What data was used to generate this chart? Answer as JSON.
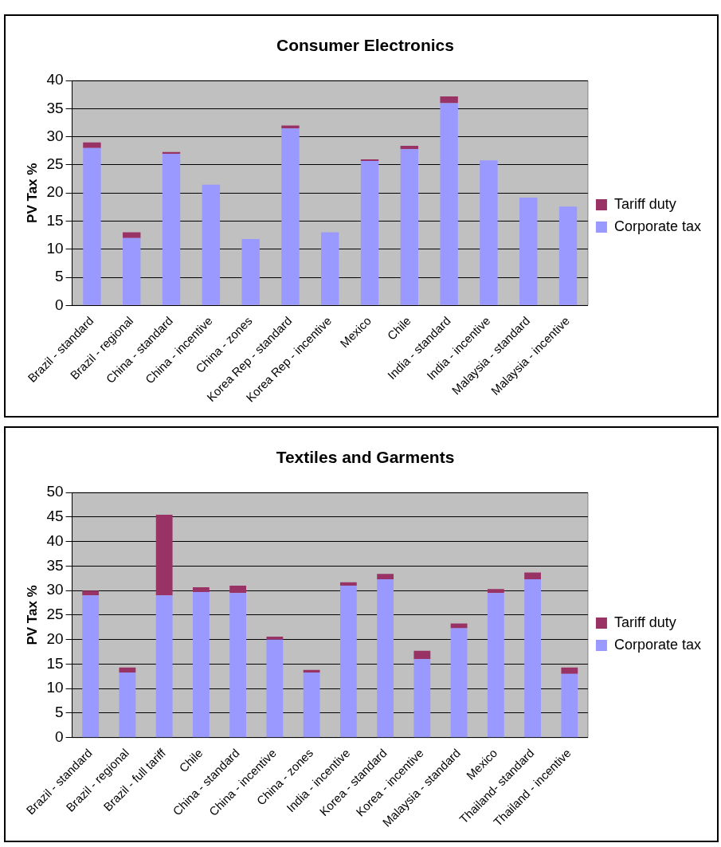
{
  "chart_data": [
    {
      "type": "bar",
      "title": "Consumer Electronics",
      "ylabel": "PV Tax %",
      "stacked": true,
      "legend": "right",
      "grid": "y",
      "categories": [
        "Brazil - standard",
        "Brazil - regional",
        "China - standard",
        "China - incentive",
        "China - zones",
        "Korea Rep - standard",
        "Korea Rep - incentive",
        "Mexico",
        "Chile",
        "India - standard",
        "India - incentive",
        "Malaysia - standard",
        "Malaysia - incentive"
      ],
      "series": [
        {
          "name": "Corporate tax",
          "color": "#9999ff",
          "values": [
            28,
            12,
            27,
            21.5,
            11.8,
            31.5,
            13,
            25.7,
            27.8,
            36,
            25.8,
            19.2,
            17.6
          ]
        },
        {
          "name": "Tariff duty",
          "color": "#993366",
          "values": [
            1,
            1,
            0.3,
            0,
            0,
            0.5,
            0,
            0.3,
            0.6,
            1.2,
            0,
            0,
            0
          ]
        }
      ],
      "ylim": [
        0,
        40
      ],
      "yticks": [
        0,
        5,
        10,
        15,
        20,
        25,
        30,
        35,
        40
      ]
    },
    {
      "type": "bar",
      "title": "Textiles and Garments",
      "ylabel": "PV Tax %",
      "stacked": true,
      "legend": "right",
      "grid": "y",
      "categories": [
        "Brazil - standard",
        "Brazil - regional",
        "Brazil - full tariff",
        "Chile",
        "China - standard",
        "China - incentive",
        "China - zones",
        "India - incentive",
        "Korea - standard",
        "Korea - incentive",
        "Malaysia - standard",
        "Mexico",
        "Thailand- standard",
        "Thailand - incentive"
      ],
      "series": [
        {
          "name": "Corporate tax",
          "color": "#9999ff",
          "values": [
            29,
            13.3,
            29,
            29.7,
            29.5,
            20,
            13.3,
            31,
            32.3,
            16,
            22.3,
            29.5,
            32.3,
            13
          ]
        },
        {
          "name": "Tariff duty",
          "color": "#993366",
          "values": [
            1,
            1,
            16.5,
            1,
            1.5,
            0.6,
            0.5,
            0.7,
            1.1,
            1.7,
            1,
            0.8,
            1.4,
            1.3
          ]
        }
      ],
      "ylim": [
        0,
        50
      ],
      "yticks": [
        0,
        5,
        10,
        15,
        20,
        25,
        30,
        35,
        40,
        45,
        50
      ]
    }
  ]
}
